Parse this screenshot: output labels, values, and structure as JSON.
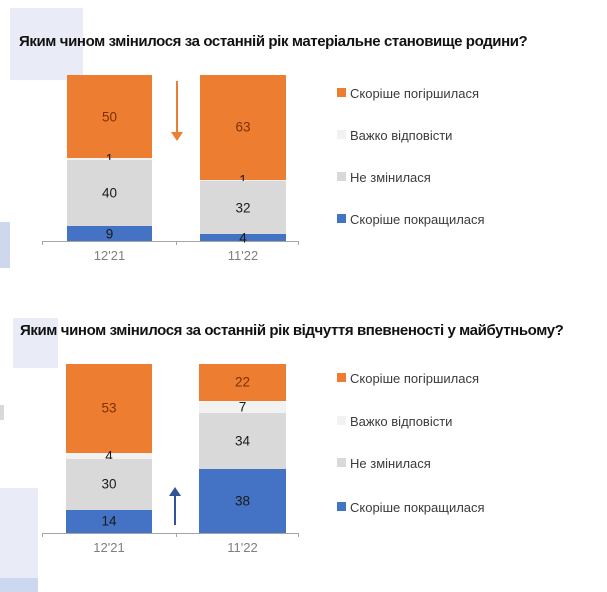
{
  "slide": {
    "background": "#ffffff"
  },
  "chart_data": [
    {
      "type": "stacked_bar",
      "title": "Яким чином змінилося за останній рік матеріальне становище родини?",
      "categories": [
        "12'21",
        "11'22"
      ],
      "series": [
        {
          "name": "Скоріше погіршилася",
          "color": "#ED7D31",
          "label_color": "#7f3000",
          "values": [
            50,
            63
          ]
        },
        {
          "name": "Важко відповісти",
          "color": "#F2F2F2",
          "label_color": "#1a1a1a",
          "values": [
            1,
            1
          ]
        },
        {
          "name": "Не змінилася",
          "color": "#D9D9D9",
          "label_color": "#1a1a1a",
          "values": [
            40,
            32
          ]
        },
        {
          "name": "Скоріше покращилася",
          "color": "#4472C4",
          "label_color": "#1a1a1a",
          "values": [
            9,
            4
          ]
        }
      ],
      "legend": [
        "Скоріше погіршилася",
        "Важко відповісти",
        "Не змінилася",
        "Скоріше покращилася"
      ],
      "legend_position": "right",
      "trend_arrow": {
        "direction": "down",
        "color": "#ED7D31"
      },
      "ylim": [
        0,
        100
      ],
      "grid": false,
      "axis_color": "#a6a6a6",
      "category_label_color": "#7f7f7f"
    },
    {
      "type": "stacked_bar",
      "title": "Яким чином змінилося за останній рік відчуття впевненості у майбутньому?",
      "categories": [
        "12'21",
        "11'22"
      ],
      "series": [
        {
          "name": "Скоріше погіршилася",
          "color": "#ED7D31",
          "label_color": "#7f3000",
          "values": [
            53,
            22
          ]
        },
        {
          "name": "Важко відповісти",
          "color": "#F2F2F2",
          "label_color": "#1a1a1a",
          "values": [
            4,
            7
          ]
        },
        {
          "name": "Не змінилася",
          "color": "#D9D9D9",
          "label_color": "#1a1a1a",
          "values": [
            30,
            34
          ]
        },
        {
          "name": "Скоріше покращилася",
          "color": "#4472C4",
          "label_color": "#1a1a1a",
          "values": [
            14,
            38
          ]
        }
      ],
      "legend": [
        "Скоріше погіршилася",
        "Важко відповісти",
        "Не змінилася",
        "Скоріше покращилася"
      ],
      "legend_position": "right",
      "trend_arrow": {
        "direction": "up",
        "color": "#2F5597"
      },
      "ylim": [
        0,
        101
      ],
      "grid": false,
      "axis_color": "#a6a6a6",
      "category_label_color": "#7f7f7f"
    }
  ]
}
